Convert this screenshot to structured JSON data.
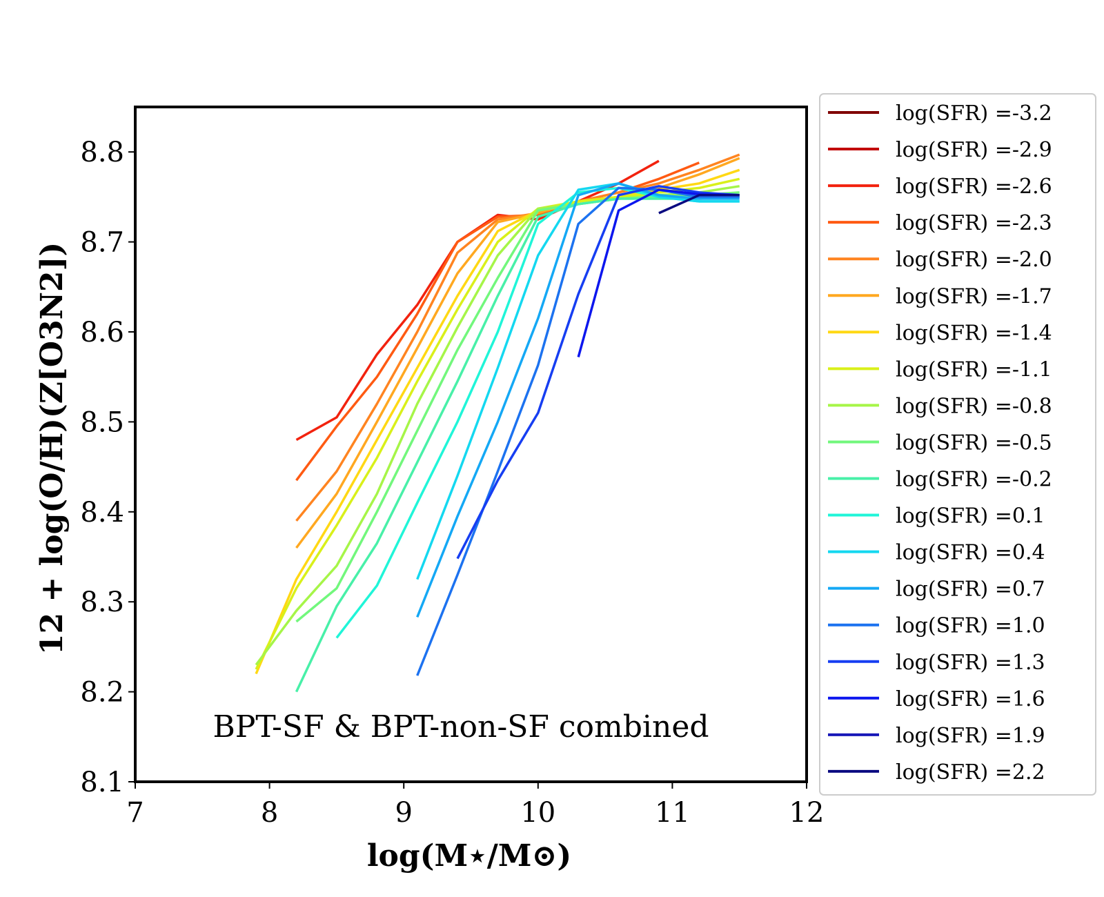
{
  "chart_data": {
    "type": "line",
    "title": "",
    "xlabel": "log(M⋆/M⊙)",
    "ylabel": "12 + log(O/H)(Z[O3N2])",
    "xlim": [
      7,
      12
    ],
    "ylim": [
      8.1,
      8.85
    ],
    "xticks": [
      7,
      8,
      9,
      10,
      11,
      12
    ],
    "xtick_labels": [
      "7",
      "8",
      "9",
      "10",
      "11",
      "12"
    ],
    "yticks": [
      8.1,
      8.2,
      8.3,
      8.4,
      8.5,
      8.6,
      8.7,
      8.8
    ],
    "ytick_labels": [
      "8.1",
      "8.2",
      "8.3",
      "8.4",
      "8.5",
      "8.6",
      "8.7",
      "8.8"
    ],
    "annotation": "BPT-SF & BPT-non-SF combined",
    "legend_position": "outside-right",
    "grid": false,
    "series": [
      {
        "name": "log(SFR) =-3.2",
        "color": "#800000",
        "x": [],
        "y": []
      },
      {
        "name": "log(SFR) =-2.9",
        "color": "#c20a0a",
        "x": [],
        "y": []
      },
      {
        "name": "log(SFR) =-2.6",
        "color": "#f2220e",
        "x": [
          8.2,
          8.5,
          8.8,
          9.1,
          9.4,
          9.7,
          10.0,
          10.3,
          10.6,
          10.9
        ],
        "y": [
          8.48,
          8.505,
          8.575,
          8.63,
          8.7,
          8.73,
          8.725,
          8.745,
          8.765,
          8.79
        ]
      },
      {
        "name": "log(SFR) =-2.3",
        "color": "#ff5a12",
        "x": [
          8.2,
          8.5,
          8.8,
          9.1,
          9.4,
          9.7,
          10.0,
          10.3,
          10.6,
          10.9,
          11.2
        ],
        "y": [
          8.435,
          8.495,
          8.55,
          8.62,
          8.7,
          8.728,
          8.73,
          8.745,
          8.755,
          8.77,
          8.788
        ]
      },
      {
        "name": "log(SFR) =-2.0",
        "color": "#ff8420",
        "x": [
          8.2,
          8.5,
          8.8,
          9.1,
          9.4,
          9.7,
          10.0,
          10.3,
          10.6,
          10.9,
          11.2,
          11.5
        ],
        "y": [
          8.39,
          8.445,
          8.52,
          8.6,
          8.688,
          8.725,
          8.732,
          8.745,
          8.755,
          8.765,
          8.78,
          8.797
        ]
      },
      {
        "name": "log(SFR) =-1.7",
        "color": "#ffa820",
        "x": [
          8.2,
          8.5,
          8.8,
          9.1,
          9.4,
          9.7,
          10.0,
          10.3,
          10.6,
          10.9,
          11.2,
          11.5
        ],
        "y": [
          8.36,
          8.42,
          8.5,
          8.582,
          8.665,
          8.722,
          8.732,
          8.745,
          8.75,
          8.76,
          8.775,
          8.793
        ]
      },
      {
        "name": "log(SFR) =-1.4",
        "color": "#ffd814",
        "x": [
          7.9,
          8.2,
          8.5,
          8.8,
          9.1,
          9.4,
          9.7,
          10.0,
          10.3,
          10.6,
          10.9,
          11.2,
          11.5
        ],
        "y": [
          8.22,
          8.325,
          8.4,
          8.48,
          8.56,
          8.64,
          8.712,
          8.735,
          8.745,
          8.75,
          8.758,
          8.765,
          8.78
        ]
      },
      {
        "name": "log(SFR) =-1.1",
        "color": "#d9f01a",
        "x": [
          7.9,
          8.2,
          8.5,
          8.8,
          9.1,
          9.4,
          9.7,
          10.0,
          10.3,
          10.6,
          10.9,
          11.2,
          11.5
        ],
        "y": [
          8.225,
          8.315,
          8.385,
          8.46,
          8.545,
          8.625,
          8.7,
          8.737,
          8.745,
          8.75,
          8.755,
          8.76,
          8.77
        ]
      },
      {
        "name": "log(SFR) =-0.8",
        "color": "#a6f548",
        "x": [
          7.9,
          8.2,
          8.5,
          8.8,
          9.1,
          9.4,
          9.7,
          10.0,
          10.3,
          10.6,
          10.9,
          11.2,
          11.5
        ],
        "y": [
          8.23,
          8.29,
          8.34,
          8.42,
          8.52,
          8.605,
          8.685,
          8.737,
          8.742,
          8.748,
          8.752,
          8.755,
          8.762
        ]
      },
      {
        "name": "log(SFR) =-0.5",
        "color": "#72f77c",
        "x": [
          8.2,
          8.5,
          8.8,
          9.1,
          9.4,
          9.7,
          10.0,
          10.3,
          10.6,
          10.9,
          11.2,
          11.5
        ],
        "y": [
          8.278,
          8.315,
          8.4,
          8.49,
          8.58,
          8.66,
          8.735,
          8.742,
          8.748,
          8.75,
          8.752,
          8.755
        ]
      },
      {
        "name": "log(SFR) =-0.2",
        "color": "#48f0a8",
        "x": [
          8.2,
          8.5,
          8.8,
          9.1,
          9.4,
          9.7,
          10.0,
          10.3,
          10.6,
          10.9,
          11.2,
          11.5
        ],
        "y": [
          8.2,
          8.295,
          8.365,
          8.455,
          8.545,
          8.64,
          8.728,
          8.742,
          8.748,
          8.748,
          8.748,
          8.75
        ]
      },
      {
        "name": "log(SFR) =0.1",
        "color": "#20f5d8",
        "x": [
          8.5,
          8.8,
          9.1,
          9.4,
          9.7,
          10.0,
          10.3,
          10.6,
          10.9,
          11.2,
          11.5
        ],
        "y": [
          8.26,
          8.318,
          8.41,
          8.5,
          8.6,
          8.72,
          8.755,
          8.76,
          8.75,
          8.745,
          8.745
        ]
      },
      {
        "name": "log(SFR) =0.4",
        "color": "#14d8f0",
        "x": [
          9.1,
          9.4,
          9.7,
          10.0,
          10.3,
          10.6,
          10.9,
          11.2,
          11.5
        ],
        "y": [
          8.325,
          8.44,
          8.56,
          8.685,
          8.758,
          8.765,
          8.75,
          8.745,
          8.745
        ]
      },
      {
        "name": "log(SFR) =0.7",
        "color": "#14a8f5",
        "x": [
          9.1,
          9.4,
          9.7,
          10.0,
          10.3,
          10.6,
          10.9,
          11.2,
          11.5
        ],
        "y": [
          8.283,
          8.395,
          8.5,
          8.615,
          8.752,
          8.765,
          8.752,
          8.748,
          8.748
        ]
      },
      {
        "name": "log(SFR) =1.0",
        "color": "#1c72f0",
        "x": [
          9.1,
          9.4,
          9.7,
          10.0,
          10.3,
          10.6,
          10.9,
          11.2,
          11.5
        ],
        "y": [
          8.218,
          8.33,
          8.445,
          8.563,
          8.72,
          8.76,
          8.758,
          8.75,
          8.75
        ]
      },
      {
        "name": "log(SFR) =1.3",
        "color": "#163ef2",
        "x": [
          9.4,
          9.7,
          10.0,
          10.3,
          10.6,
          10.9,
          11.2,
          11.5
        ],
        "y": [
          8.348,
          8.435,
          8.51,
          8.642,
          8.752,
          8.762,
          8.755,
          8.752
        ]
      },
      {
        "name": "log(SFR) =1.6",
        "color": "#0c16ee",
        "x": [
          10.3,
          10.6,
          10.9,
          11.2,
          11.5
        ],
        "y": [
          8.572,
          8.735,
          8.758,
          8.753,
          8.752
        ]
      },
      {
        "name": "log(SFR) =1.9",
        "color": "#1818b8",
        "x": [],
        "y": []
      },
      {
        "name": "log(SFR) =2.2",
        "color": "#0a0a80",
        "x": [
          10.9,
          11.2,
          11.5
        ],
        "y": [
          8.732,
          8.752,
          8.752
        ]
      }
    ]
  }
}
